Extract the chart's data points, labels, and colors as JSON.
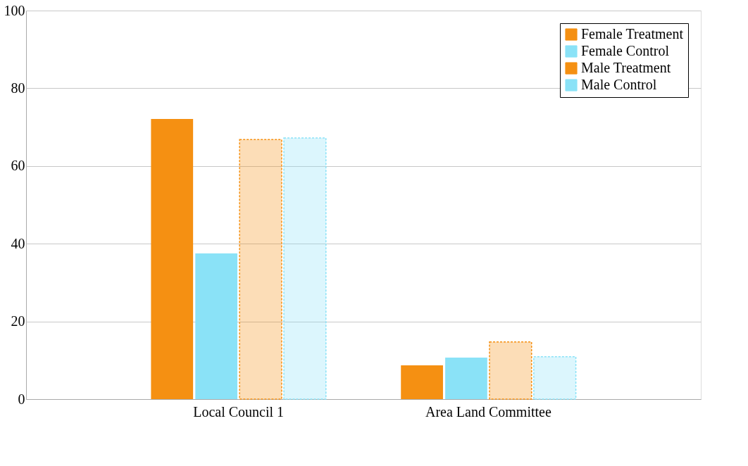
{
  "chart_data": {
    "type": "bar",
    "categories": [
      "Local Council 1",
      "Area Land Committee"
    ],
    "series": [
      {
        "name": "Female Treatment",
        "color": "#f59012",
        "values": [
          72.1,
          8.7
        ]
      },
      {
        "name": "Female Control",
        "color": "#8ae2f7",
        "values": [
          37.5,
          10.7
        ]
      },
      {
        "name": "Male Treatment",
        "color": "#f59012",
        "values": [
          66.8,
          14.7
        ]
      },
      {
        "name": "Male Control",
        "color": "#8ae2f7",
        "values": [
          67.2,
          10.9
        ]
      }
    ],
    "ylim": [
      0,
      100
    ],
    "yticks": [
      0,
      20,
      40,
      60,
      80,
      100
    ],
    "grid": "y",
    "legend": "top right"
  }
}
